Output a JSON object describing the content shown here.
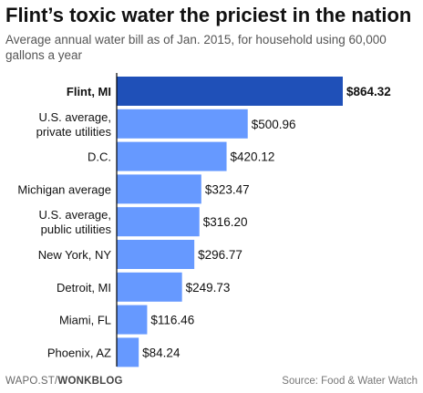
{
  "header": {
    "title": "Flint’s toxic water the priciest in the nation",
    "subtitle": "Average annual water bill as of Jan. 2015, for household using 60,000 gallons a year"
  },
  "footer": {
    "left_prefix": "WAPO.ST/",
    "left_brand": "WONKBLOG",
    "right": "Source: Food & Water Watch"
  },
  "colors": {
    "highlight": "#1f50b8",
    "bar": "#6699ff",
    "axis": "#000000"
  },
  "chart_data": {
    "type": "bar",
    "orientation": "horizontal",
    "title": "Flint’s toxic water the priciest in the nation",
    "subtitle": "Average annual water bill as of Jan. 2015, for household using 60,000 gallons a year",
    "categories": [
      [
        "Flint, MI"
      ],
      [
        "U.S. average,",
        "private utilities"
      ],
      [
        "D.C."
      ],
      [
        "Michigan average"
      ],
      [
        "U.S. average,",
        "public utilities"
      ],
      [
        "New York, NY"
      ],
      [
        "Detroit, MI"
      ],
      [
        "Miami, FL"
      ],
      [
        "Phoenix, AZ"
      ]
    ],
    "values": [
      864.32,
      500.96,
      420.12,
      323.47,
      316.2,
      296.77,
      249.73,
      116.46,
      84.24
    ],
    "value_labels": [
      "$864.32",
      "$500.96",
      "$420.12",
      "$323.47",
      "$316.20",
      "$296.77",
      "$249.73",
      "$116.46",
      "$84.24"
    ],
    "highlight_index": 0,
    "xlim": [
      0,
      864.32
    ],
    "grid": false
  }
}
